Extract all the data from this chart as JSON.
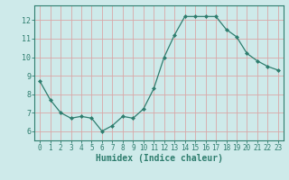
{
  "x": [
    0,
    1,
    2,
    3,
    4,
    5,
    6,
    7,
    8,
    9,
    10,
    11,
    12,
    13,
    14,
    15,
    16,
    17,
    18,
    19,
    20,
    21,
    22,
    23
  ],
  "y": [
    8.7,
    7.7,
    7.0,
    6.7,
    6.8,
    6.7,
    6.0,
    6.3,
    6.8,
    6.7,
    7.2,
    8.3,
    10.0,
    11.2,
    12.2,
    12.2,
    12.2,
    12.2,
    11.5,
    11.1,
    10.2,
    9.8,
    9.5,
    9.3
  ],
  "line_color": "#2e7d6e",
  "marker": "D",
  "marker_size": 2,
  "bg_color": "#ceeaea",
  "grid_color": "#d9a8a8",
  "xlabel": "Humidex (Indice chaleur)",
  "xlim": [
    -0.5,
    23.5
  ],
  "ylim": [
    5.5,
    12.8
  ],
  "yticks": [
    6,
    7,
    8,
    9,
    10,
    11,
    12
  ],
  "xticks": [
    0,
    1,
    2,
    3,
    4,
    5,
    6,
    7,
    8,
    9,
    10,
    11,
    12,
    13,
    14,
    15,
    16,
    17,
    18,
    19,
    20,
    21,
    22,
    23
  ],
  "tick_color": "#2e7d6e",
  "label_color": "#2e7d6e",
  "axis_color": "#2e7d6e",
  "tick_fontsize": 5.5,
  "xlabel_fontsize": 7.0
}
